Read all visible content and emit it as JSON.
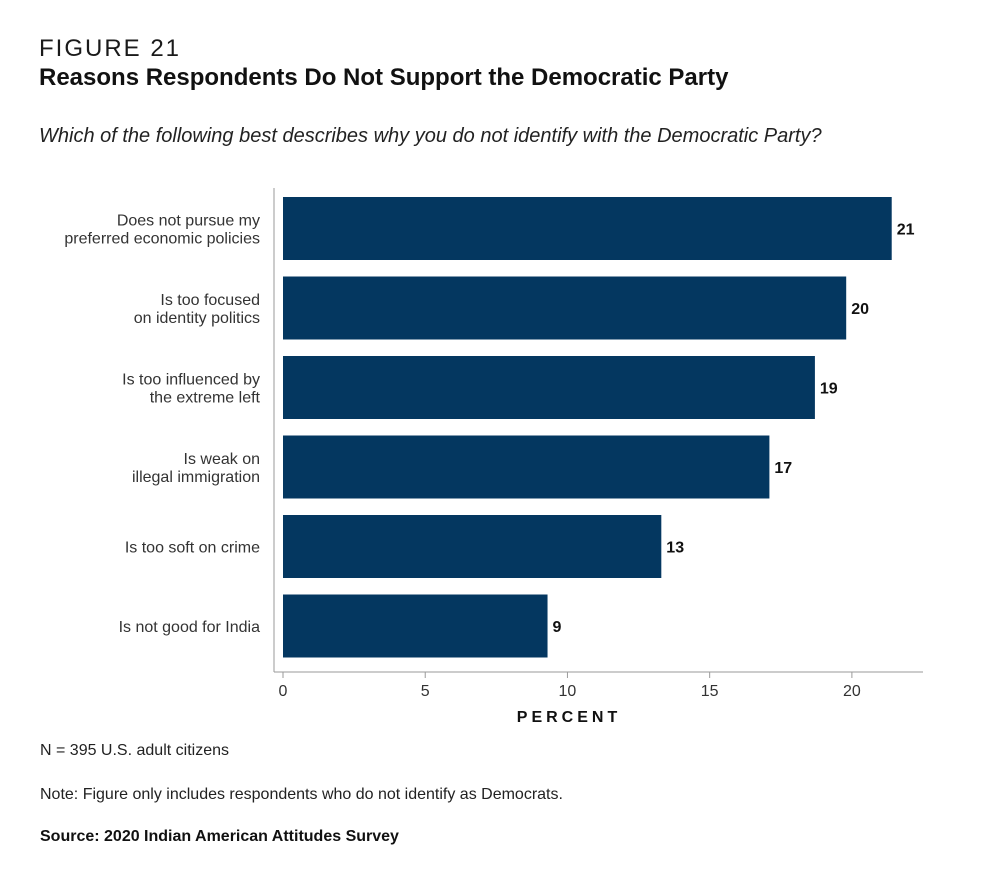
{
  "figure_label": "FIGURE 21",
  "title": "Reasons Respondents Do Not Support the Democratic Party",
  "subtitle": "Which of the following best describes why you do not identify with the Democratic Party?",
  "chart_data": {
    "type": "bar",
    "orientation": "horizontal",
    "categories": [
      [
        "Does not pursue my",
        "preferred economic policies"
      ],
      [
        "Is too focused",
        "on identity politics"
      ],
      [
        "Is too influenced by",
        "the extreme left"
      ],
      [
        "Is weak on",
        "illegal immigration"
      ],
      [
        "Is too soft on crime"
      ],
      [
        "Is not good for India"
      ]
    ],
    "values": [
      21.4,
      19.8,
      18.7,
      17.1,
      13.3,
      9.3
    ],
    "value_labels": [
      "21",
      "20",
      "19",
      "17",
      "13",
      "9"
    ],
    "xlabel": "PERCENT",
    "xlim": [
      0,
      22.5
    ],
    "xticks": [
      0,
      5,
      10,
      15,
      20
    ],
    "bar_color": "#043760"
  },
  "footer": {
    "n": "N = 395 U.S. adult citizens",
    "note": "Note: Figure only includes respondents who do not identify as Democrats.",
    "source": "Source: 2020 Indian American Attitudes Survey"
  }
}
